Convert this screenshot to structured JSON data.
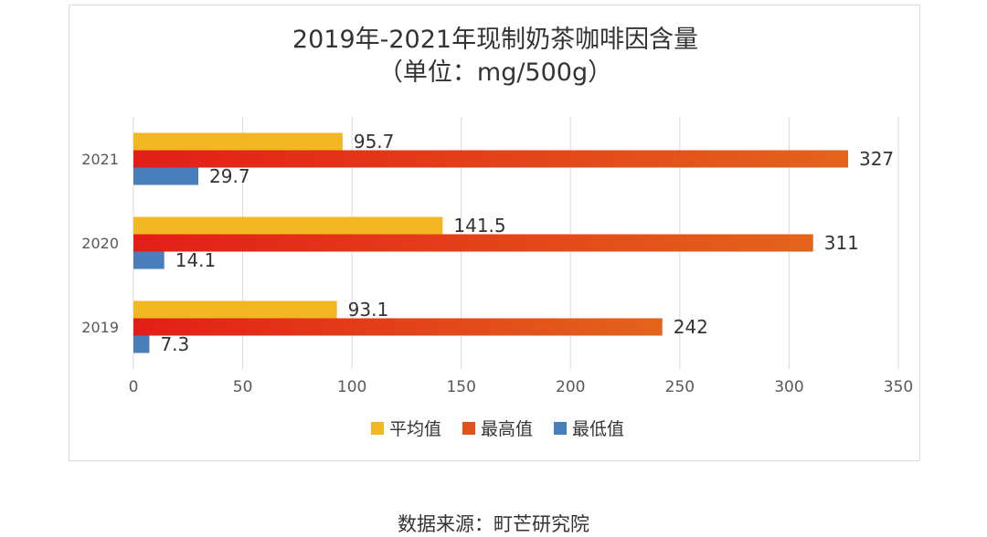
{
  "chart_data": {
    "type": "bar",
    "orientation": "horizontal",
    "title": "2019年-2021年现制奶茶咖啡因含量",
    "subtitle": "（单位：mg/500g）",
    "categories": [
      "2021",
      "2020",
      "2019"
    ],
    "series": [
      {
        "name": "平均值",
        "values": [
          95.7,
          141.5,
          93.1
        ],
        "labels": [
          "95.7",
          "141.5",
          "93.1"
        ],
        "color": "#f2b722"
      },
      {
        "name": "最高值",
        "values": [
          327,
          311,
          242
        ],
        "labels": [
          "327",
          "311",
          "242"
        ],
        "color": "#e0531c"
      },
      {
        "name": "最低值",
        "values": [
          29.7,
          14.1,
          7.3
        ],
        "labels": [
          "29.7",
          "14.1",
          "7.3"
        ],
        "color": "#4a7ebb"
      }
    ],
    "xlim": [
      0,
      350
    ],
    "xticks": [
      0,
      50,
      100,
      150,
      200,
      250,
      300,
      350
    ],
    "grid": true,
    "legend_position": "bottom"
  },
  "source": "数据来源：町芒研究院"
}
